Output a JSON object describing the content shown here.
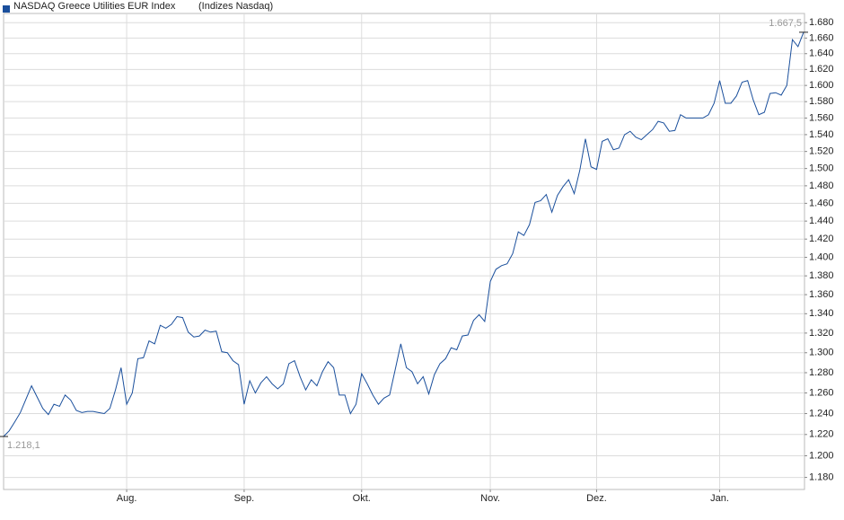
{
  "chart_data": {
    "type": "line",
    "title": "NASDAQ Greece Utilities EUR Index",
    "subtitle": "(Indizes Nasdaq)",
    "series": [
      {
        "name": "NASDAQ Greece Utilities EUR Index",
        "color": "#1a4f9c",
        "values": [
          1218.1,
          1223.5,
          1232,
          1241,
          1254,
          1267,
          1256,
          1245,
          1239,
          1249,
          1247,
          1258,
          1253,
          1243,
          1241,
          1242,
          1242,
          1241,
          1240,
          1245,
          1263,
          1285,
          1249,
          1260,
          1294,
          1295,
          1312,
          1309,
          1328,
          1325,
          1329,
          1337,
          1336,
          1321,
          1316,
          1317,
          1323,
          1321,
          1322,
          1301,
          1300,
          1292,
          1288,
          1249,
          1272,
          1260,
          1270,
          1276,
          1269,
          1264,
          1269,
          1289,
          1292,
          1276,
          1263,
          1273,
          1267,
          1281,
          1291,
          1285,
          1258,
          1258,
          1240,
          1249,
          1279,
          1269,
          1258,
          1249,
          1255,
          1258,
          1283,
          1309,
          1285,
          1281,
          1269,
          1276,
          1259,
          1278,
          1289,
          1294,
          1305,
          1303,
          1317,
          1318,
          1333,
          1339,
          1332,
          1374,
          1387,
          1391,
          1393,
          1404,
          1428,
          1424,
          1436,
          1461,
          1463,
          1470,
          1450,
          1469,
          1479,
          1487,
          1471,
          1498,
          1535,
          1502,
          1499,
          1532,
          1535,
          1522,
          1524,
          1540,
          1544,
          1537,
          1534,
          1540,
          1546,
          1556,
          1554,
          1544,
          1545,
          1564,
          1560,
          1560,
          1560,
          1560,
          1564,
          1578,
          1606,
          1578,
          1578,
          1587,
          1604,
          1606,
          1582,
          1564,
          1567,
          1590,
          1591,
          1588,
          1600,
          1658,
          1649,
          1667.5
        ]
      }
    ],
    "annotations": [
      {
        "value": 1218.1,
        "label": "1.218,1"
      },
      {
        "value": 1667.5,
        "label": "1.667,5"
      }
    ],
    "xticks": [
      {
        "value": 22,
        "label": "Aug."
      },
      {
        "value": 43,
        "label": "Sep."
      },
      {
        "value": 64,
        "label": "Okt."
      },
      {
        "value": 87,
        "label": "Nov."
      },
      {
        "value": 106,
        "label": "Dez."
      },
      {
        "value": 128,
        "label": "Jan."
      }
    ],
    "ylim": [
      1169,
      1692
    ],
    "log_scale": true,
    "grid": true,
    "yticks": [
      {
        "value": 1180,
        "label": "1.180"
      },
      {
        "value": 1200,
        "label": "1.200"
      },
      {
        "value": 1220,
        "label": "1.220"
      },
      {
        "value": 1240,
        "label": "1.240"
      },
      {
        "value": 1260,
        "label": "1.260"
      },
      {
        "value": 1280,
        "label": "1.280"
      },
      {
        "value": 1300,
        "label": "1.300"
      },
      {
        "value": 1320,
        "label": "1.320"
      },
      {
        "value": 1340,
        "label": "1.340"
      },
      {
        "value": 1360,
        "label": "1.360"
      },
      {
        "value": 1380,
        "label": "1.380"
      },
      {
        "value": 1400,
        "label": "1.400"
      },
      {
        "value": 1420,
        "label": "1.420"
      },
      {
        "value": 1440,
        "label": "1.440"
      },
      {
        "value": 1460,
        "label": "1.460"
      },
      {
        "value": 1480,
        "label": "1.480"
      },
      {
        "value": 1500,
        "label": "1.500"
      },
      {
        "value": 1520,
        "label": "1.520"
      },
      {
        "value": 1540,
        "label": "1.540"
      },
      {
        "value": 1560,
        "label": "1.560"
      },
      {
        "value": 1580,
        "label": "1.580"
      },
      {
        "value": 1600,
        "label": "1.600"
      },
      {
        "value": 1620,
        "label": "1.620"
      },
      {
        "value": 1640,
        "label": "1.640"
      },
      {
        "value": 1660,
        "label": "1.660"
      },
      {
        "value": 1680,
        "label": "1.680"
      }
    ]
  }
}
